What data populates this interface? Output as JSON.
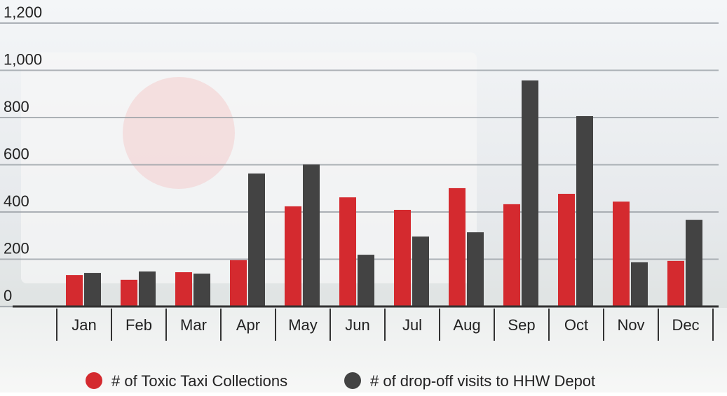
{
  "chart_data": {
    "type": "bar",
    "categories": [
      "Jan",
      "Feb",
      "Mar",
      "Apr",
      "May",
      "Jun",
      "Jul",
      "Aug",
      "Sep",
      "Oct",
      "Nov",
      "Dec"
    ],
    "series": [
      {
        "name": "# of Toxic Taxi Collections",
        "color": "#d42a2f",
        "values": [
          133,
          113,
          145,
          196,
          424,
          462,
          409,
          501,
          433,
          477,
          444,
          193
        ]
      },
      {
        "name": "# of drop-off visits to HHW Depot",
        "color": "#434343",
        "values": [
          142,
          148,
          139,
          563,
          601,
          219,
          296,
          314,
          957,
          806,
          187,
          367
        ]
      }
    ],
    "ylim": [
      0,
      1200
    ],
    "yticks": [
      0,
      200,
      400,
      600,
      800,
      {
        "value": 1000,
        "label": "1,000"
      },
      {
        "value": 1200,
        "label": "1,200"
      }
    ],
    "grid": true
  }
}
